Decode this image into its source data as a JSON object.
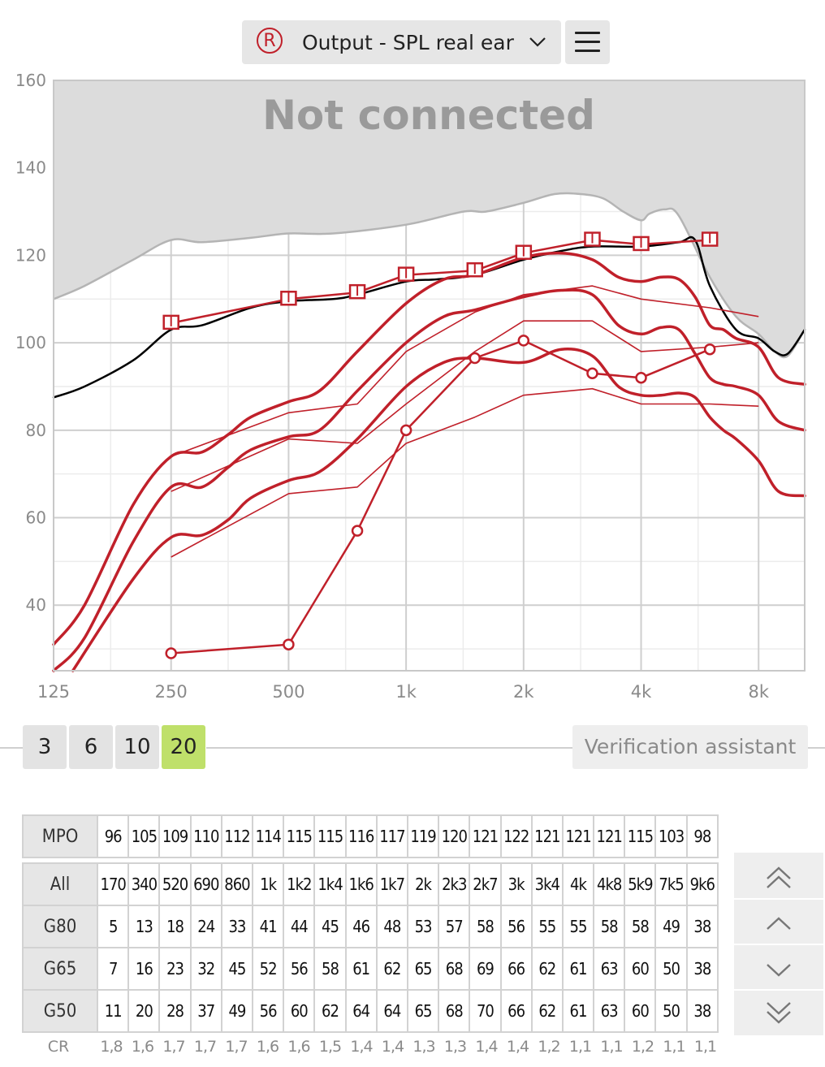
{
  "header": {
    "side_marker": "R",
    "title": "Output - SPL real ear",
    "side_color": "#c0202a"
  },
  "chart_data": {
    "type": "line",
    "title": "",
    "xlabel": "",
    "ylabel": "",
    "x_scale": "log",
    "xlim": [
      125,
      10500
    ],
    "ylim": [
      25,
      160
    ],
    "x_ticks": [
      125,
      250,
      500,
      1000,
      2000,
      4000,
      8000
    ],
    "x_tick_labels": [
      "125",
      "250",
      "500",
      "1k",
      "2k",
      "4k",
      "8k"
    ],
    "y_ticks": [
      40,
      60,
      80,
      100,
      120,
      140,
      160
    ],
    "y_tick_labels": [
      "40",
      "60",
      "80",
      "100",
      "120",
      "140",
      "160"
    ],
    "grid": true,
    "overlay_text": "Not connected",
    "colors": {
      "fit": "#c0202a",
      "ucl": "#000000",
      "limit_fill": "#dcdcdc",
      "limit_line": "#b4b4b4"
    },
    "series": [
      {
        "role": "limit",
        "x": [
          125,
          150,
          200,
          250,
          300,
          400,
          500,
          650,
          1000,
          1400,
          1600,
          2000,
          2400,
          2800,
          3200,
          3600,
          4000,
          4200,
          4600,
          5000,
          6000,
          7000,
          8000,
          8800,
          9500,
          10500
        ],
        "y": [
          110,
          113,
          119,
          123.5,
          123,
          124,
          125,
          125,
          127,
          130,
          130,
          132,
          134,
          134,
          133,
          130,
          128,
          129.5,
          130.5,
          129,
          115,
          106,
          102,
          98,
          97,
          103
        ]
      },
      {
        "role": "ucl",
        "x": [
          125,
          150,
          200,
          250,
          300,
          400,
          500,
          650,
          750,
          1000,
          1200,
          1500,
          2000,
          2500,
          3000,
          4000,
          5000,
          5500,
          6000,
          7000,
          8000,
          8800,
          9500,
          10500
        ],
        "y": [
          87.5,
          90,
          96,
          103,
          104,
          108,
          109.5,
          110,
          111,
          114,
          114.5,
          115.5,
          119,
          121,
          122,
          122,
          123,
          123.5,
          113,
          103,
          101,
          98,
          97.5,
          103
        ]
      },
      {
        "role": "mpo_target",
        "x": [
          250,
          500,
          750,
          1000,
          1500,
          2000,
          3000,
          4000,
          6000
        ],
        "y": [
          104.5,
          110,
          111.5,
          115.5,
          116.5,
          120.5,
          123.5,
          122.5,
          123.5
        ]
      },
      {
        "role": "g50_response",
        "x": [
          125,
          150,
          200,
          250,
          300,
          350,
          400,
          500,
          600,
          750,
          1000,
          1250,
          1500,
          2000,
          2500,
          3000,
          3500,
          4000,
          4500,
          5000,
          5500,
          6000,
          6500,
          7000,
          8000,
          9000,
          10500
        ],
        "y": [
          31,
          40,
          63,
          74,
          75,
          79,
          83,
          86.5,
          89,
          98,
          109,
          114.5,
          115.5,
          119.5,
          120.5,
          119,
          115,
          114,
          115,
          114.5,
          110.5,
          104,
          103,
          101,
          99,
          92,
          90.5
        ]
      },
      {
        "role": "g65_response",
        "x": [
          125,
          150,
          200,
          250,
          300,
          350,
          400,
          500,
          600,
          750,
          1000,
          1250,
          1500,
          2000,
          2500,
          3000,
          3500,
          4000,
          4500,
          5000,
          5500,
          6000,
          6500,
          7000,
          8000,
          9000,
          10500
        ],
        "y": [
          25,
          32.5,
          54.5,
          67,
          67,
          71.5,
          75.5,
          78.5,
          80,
          89,
          100,
          106,
          107.5,
          110.5,
          112,
          111,
          104,
          102,
          103.5,
          103,
          97.5,
          92,
          90.5,
          90,
          88,
          82,
          80
        ]
      },
      {
        "role": "g80_response",
        "x": [
          140,
          200,
          250,
          300,
          350,
          400,
          500,
          600,
          750,
          1000,
          1250,
          1500,
          2000,
          2500,
          3000,
          3500,
          4000,
          4500,
          5000,
          5500,
          6000,
          6500,
          7000,
          8000,
          9000,
          10500
        ],
        "y": [
          25,
          46,
          55.5,
          56,
          59.5,
          64.5,
          68.5,
          70.5,
          78,
          90,
          95.5,
          96.5,
          95.5,
          98.5,
          97,
          90,
          88,
          88,
          88.5,
          87.5,
          83,
          80,
          78,
          73,
          66,
          65
        ]
      },
      {
        "role": "g50_target",
        "x": [
          250,
          500,
          750,
          1000,
          1500,
          2000,
          3000,
          4000,
          6000,
          8000
        ],
        "y": [
          74,
          84,
          86,
          98,
          107,
          111,
          113,
          110,
          108,
          106
        ]
      },
      {
        "role": "g65_target",
        "x": [
          250,
          500,
          750,
          1000,
          1500,
          2000,
          3000,
          4000,
          6000,
          8000
        ],
        "y": [
          66,
          78,
          77,
          86,
          98,
          105,
          105,
          98,
          99,
          100
        ]
      },
      {
        "role": "g80_target",
        "x": [
          250,
          500,
          750,
          1000,
          1500,
          2000,
          3000,
          4000,
          6000,
          8000
        ],
        "y": [
          51,
          65.5,
          67,
          77,
          83,
          88,
          89.5,
          86,
          86,
          85.5
        ]
      },
      {
        "role": "threshold",
        "x": [
          250,
          500,
          750,
          1000,
          1500,
          2000,
          3000,
          4000,
          6000
        ],
        "y": [
          29,
          31,
          57,
          80,
          96.5,
          100.5,
          93,
          92,
          98.5
        ]
      }
    ]
  },
  "levels": {
    "buttons": [
      "3",
      "6",
      "10",
      "20"
    ],
    "active": "20"
  },
  "verification_label": "Verification assistant",
  "tables": {
    "mpo": {
      "label": "MPO",
      "values": [
        "96",
        "105",
        "109",
        "110",
        "112",
        "114",
        "115",
        "115",
        "116",
        "117",
        "119",
        "120",
        "121",
        "122",
        "121",
        "121",
        "121",
        "115",
        "103",
        "98"
      ]
    },
    "all": {
      "label": "All",
      "values": [
        "170",
        "340",
        "520",
        "690",
        "860",
        "1k",
        "1k2",
        "1k4",
        "1k6",
        "1k7",
        "2k",
        "2k3",
        "2k7",
        "3k",
        "3k4",
        "4k",
        "4k8",
        "5k9",
        "7k5",
        "9k6"
      ]
    },
    "g80": {
      "label": "G80",
      "values": [
        "5",
        "13",
        "18",
        "24",
        "33",
        "41",
        "44",
        "45",
        "46",
        "48",
        "53",
        "57",
        "58",
        "56",
        "55",
        "55",
        "58",
        "58",
        "49",
        "38"
      ]
    },
    "g65": {
      "label": "G65",
      "values": [
        "7",
        "16",
        "23",
        "32",
        "45",
        "52",
        "56",
        "58",
        "61",
        "62",
        "65",
        "68",
        "69",
        "66",
        "62",
        "61",
        "63",
        "60",
        "50",
        "38"
      ]
    },
    "g50": {
      "label": "G50",
      "values": [
        "11",
        "20",
        "28",
        "37",
        "49",
        "56",
        "60",
        "62",
        "64",
        "64",
        "65",
        "68",
        "70",
        "66",
        "62",
        "61",
        "63",
        "60",
        "50",
        "38"
      ]
    },
    "cr": {
      "label": "CR",
      "values": [
        "1,8",
        "1,6",
        "1,7",
        "1,7",
        "1,7",
        "1,6",
        "1,6",
        "1,5",
        "1,4",
        "1,4",
        "1,3",
        "1,3",
        "1,4",
        "1,4",
        "1,2",
        "1,1",
        "1,1",
        "1,2",
        "1,1",
        "1,1"
      ]
    }
  },
  "icons": {
    "side": "ear-marker-icon",
    "dropdown": "chevron-down-icon",
    "menu": "hamburger-icon",
    "scroll": [
      "double-chevron-up-icon",
      "chevron-up-icon",
      "chevron-down-icon",
      "double-chevron-down-icon"
    ]
  }
}
